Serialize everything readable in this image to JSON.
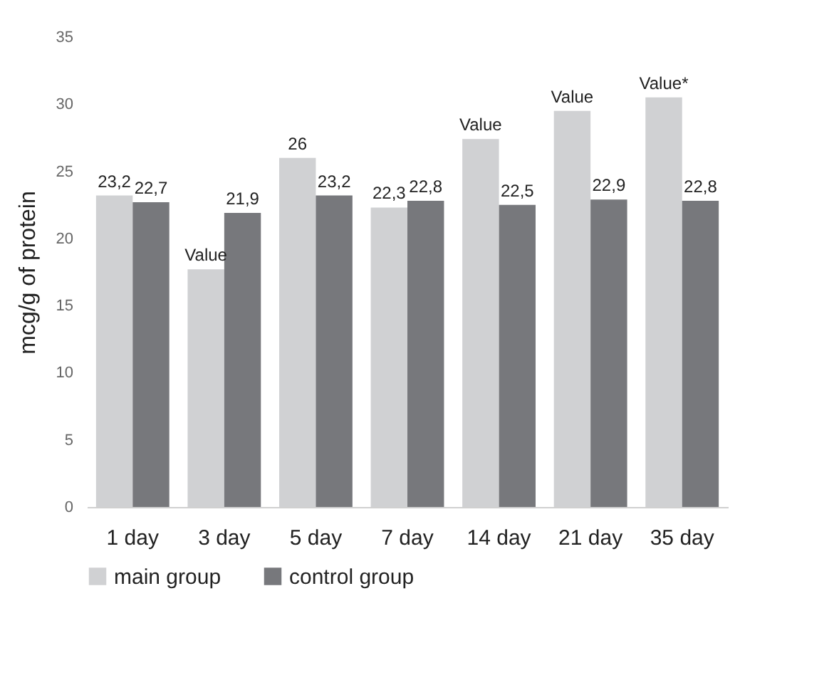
{
  "chart_data": {
    "type": "bar",
    "ylabel": "mcg/g of protein",
    "categories": [
      "1 day",
      "3 day",
      "5 day",
      "7 day",
      "14 day",
      "21 day",
      "35 day"
    ],
    "series": [
      {
        "name": "main group",
        "color": "#d0d1d3",
        "values": [
          23.2,
          17.7,
          26,
          22.3,
          27.4,
          29.5,
          30.5
        ],
        "value_labels": [
          "23,2",
          "Value",
          "26",
          "22,3",
          "Value",
          "Value",
          "Value*"
        ]
      },
      {
        "name": "control group",
        "color": "#77787c",
        "values": [
          22.7,
          21.9,
          23.2,
          22.8,
          22.5,
          22.9,
          22.8
        ],
        "value_labels": [
          "22,7",
          "21,9",
          "23,2",
          "22,8",
          "22,5",
          "22,9",
          "22,8"
        ]
      }
    ],
    "ylim": [
      0,
      35
    ],
    "yticks": [
      0,
      5,
      10,
      15,
      20,
      25,
      30,
      35
    ],
    "grid": false,
    "legend": "bottom"
  }
}
